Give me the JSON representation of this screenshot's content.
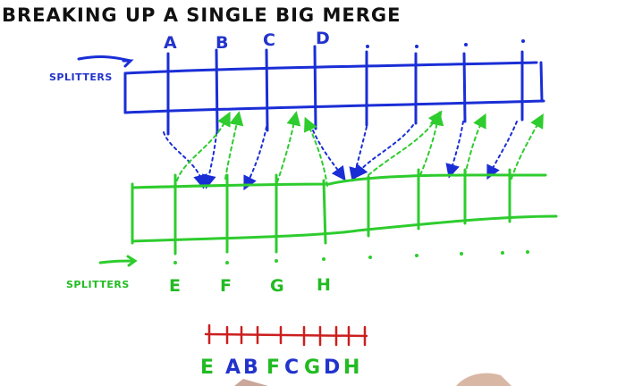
{
  "title": "BREAKING UP A SINGLE BIG MERGE",
  "blue_array": {
    "side_label": "SPLITTERS",
    "splitter_labels": [
      "A",
      "B",
      "C",
      "D"
    ],
    "color": "#1a2ed6"
  },
  "green_array": {
    "side_label": "SPLITTERS",
    "splitter_labels": [
      "E",
      "F",
      "G",
      "H"
    ],
    "color": "#2ecc2e"
  },
  "merged_order": {
    "letters": [
      "E",
      "A",
      "B",
      "F",
      "C",
      "G",
      "D",
      "H"
    ],
    "colors": [
      "#22bb22",
      "#2233cc",
      "#2233cc",
      "#22bb22",
      "#2233cc",
      "#22bb22",
      "#2233cc",
      "#22bb22"
    ],
    "line_color": "#cc1f1f"
  }
}
